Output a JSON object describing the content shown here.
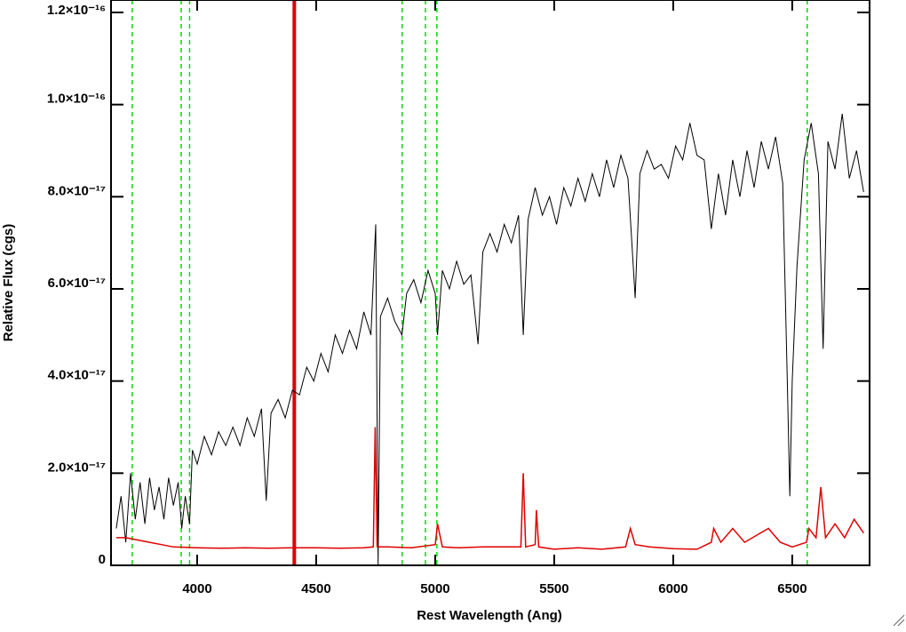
{
  "chart_data": {
    "type": "line",
    "xlabel": "Rest Wavelength (Ang)",
    "ylabel": "Relative Flux (cgs)",
    "xlim": [
      3638,
      6825
    ],
    "ylim": [
      0,
      1.227e-16
    ],
    "xticks": [
      4000,
      4500,
      5000,
      5500,
      6000,
      6500
    ],
    "yticks": [
      0,
      {
        "value": 2e-17,
        "label": "2.0×10⁻¹⁷"
      },
      {
        "value": 4e-17,
        "label": "4.0×10⁻¹⁷"
      },
      {
        "value": 6e-17,
        "label": "6.0×10⁻¹⁷"
      },
      {
        "value": 8e-17,
        "label": "8.0×10⁻¹⁷"
      },
      {
        "value": 1e-16,
        "label": "1.0×10⁻¹⁶"
      },
      {
        "value": 1.2e-16,
        "label": "1.2×10⁻¹⁶"
      }
    ],
    "markers": {
      "color": "#00dd00",
      "values": [
        3727,
        3933,
        3968,
        4861,
        4959,
        5007,
        6563
      ]
    },
    "highlight": {
      "color": "#e00000",
      "value": 4408
    },
    "series": [
      {
        "color": "#000000",
        "x": [
          3660,
          3680,
          3700,
          3720,
          3740,
          3760,
          3780,
          3800,
          3820,
          3840,
          3860,
          3880,
          3900,
          3920,
          3935,
          3950,
          3968,
          3980,
          4000,
          4030,
          4060,
          4090,
          4120,
          4150,
          4180,
          4210,
          4240,
          4270,
          4290,
          4310,
          4340,
          4370,
          4400,
          4430,
          4460,
          4490,
          4520,
          4550,
          4580,
          4610,
          4640,
          4670,
          4700,
          4730,
          4750,
          4760,
          4770,
          4800,
          4830,
          4860,
          4880,
          4910,
          4940,
          4970,
          5000,
          5010,
          5030,
          5060,
          5090,
          5120,
          5150,
          5180,
          5200,
          5230,
          5260,
          5290,
          5320,
          5350,
          5370,
          5390,
          5420,
          5450,
          5480,
          5510,
          5540,
          5570,
          5600,
          5630,
          5660,
          5690,
          5720,
          5750,
          5780,
          5810,
          5840,
          5860,
          5890,
          5920,
          5950,
          5980,
          6010,
          6040,
          6070,
          6100,
          6130,
          6160,
          6190,
          6220,
          6250,
          6280,
          6310,
          6340,
          6370,
          6400,
          6430,
          6460,
          6480,
          6490,
          6500,
          6520,
          6550,
          6580,
          6610,
          6630,
          6650,
          6680,
          6710,
          6740,
          6770,
          6800
        ],
        "values": [
          8e-18,
          1.5e-17,
          5e-18,
          2e-17,
          1e-17,
          1.8e-17,
          9e-18,
          1.9e-17,
          1.2e-17,
          1.7e-17,
          1e-17,
          1.9e-17,
          1.3e-17,
          1.8e-17,
          8e-18,
          1.5e-17,
          9e-18,
          2.5e-17,
          2.2e-17,
          2.8e-17,
          2.4e-17,
          2.9e-17,
          2.6e-17,
          3e-17,
          2.6e-17,
          3.2e-17,
          2.8e-17,
          3.4e-17,
          1.4e-17,
          3.3e-17,
          3.6e-17,
          3.2e-17,
          3.8e-17,
          3.7e-17,
          4.3e-17,
          4e-17,
          4.6e-17,
          4.2e-17,
          5e-17,
          4.6e-17,
          5.1e-17,
          4.7e-17,
          5.5e-17,
          5e-17,
          7.4e-17,
          0,
          5.4e-17,
          5.8e-17,
          5.3e-17,
          5e-17,
          5.9e-17,
          6.2e-17,
          5.7e-17,
          6.4e-17,
          5.9e-17,
          5e-17,
          6.4e-17,
          6e-17,
          6.6e-17,
          6.1e-17,
          6.3e-17,
          4.8e-17,
          6.8e-17,
          7.2e-17,
          6.8e-17,
          7.4e-17,
          7e-17,
          7.6e-17,
          5e-17,
          7.5e-17,
          8.2e-17,
          7.6e-17,
          8e-17,
          7.4e-17,
          8.2e-17,
          7.8e-17,
          8.4e-17,
          7.9e-17,
          8.5e-17,
          8e-17,
          8.8e-17,
          8.2e-17,
          8.9e-17,
          8.4e-17,
          5.8e-17,
          8.5e-17,
          9e-17,
          8.6e-17,
          8.7e-17,
          8.4e-17,
          9.1e-17,
          8.8e-17,
          9.6e-17,
          8.9e-17,
          8.8e-17,
          7.3e-17,
          8.5e-17,
          7.6e-17,
          8.8e-17,
          8e-17,
          9e-17,
          8.2e-17,
          9.2e-17,
          8.6e-17,
          9.3e-17,
          8.3e-17,
          3.8e-17,
          1.5e-17,
          4e-17,
          6.5e-17,
          8.8e-17,
          9.6e-17,
          8.5e-17,
          4.7e-17,
          9.2e-17,
          8.6e-17,
          9.8e-17,
          8.4e-17,
          9e-17,
          8.1e-17
        ]
      },
      {
        "color": "#e00000",
        "x": [
          3660,
          3700,
          3750,
          3800,
          3850,
          3900,
          4000,
          4100,
          4200,
          4300,
          4400,
          4500,
          4600,
          4700,
          4740,
          4748,
          4756,
          4800,
          4900,
          5000,
          5010,
          5030,
          5100,
          5200,
          5300,
          5360,
          5370,
          5380,
          5420,
          5425,
          5435,
          5500,
          5600,
          5700,
          5800,
          5820,
          5840,
          5900,
          6000,
          6100,
          6160,
          6170,
          6200,
          6250,
          6300,
          6400,
          6450,
          6500,
          6560,
          6570,
          6600,
          6620,
          6640,
          6680,
          6720,
          6760,
          6800
        ],
        "values": [
          6e-18,
          6e-18,
          5.5e-18,
          5e-18,
          4.5e-18,
          4e-18,
          3.8e-18,
          3.7e-18,
          3.8e-18,
          3.7e-18,
          3.8e-18,
          3.8e-18,
          3.7e-18,
          3.8e-18,
          4e-18,
          3e-17,
          4e-18,
          4e-18,
          3.8e-18,
          4.5e-18,
          9e-18,
          4e-18,
          3.8e-18,
          4e-18,
          4e-18,
          4e-18,
          2e-17,
          4e-18,
          4.5e-18,
          1.2e-17,
          4e-18,
          3.5e-18,
          3.8e-18,
          3.5e-18,
          4e-18,
          8e-18,
          4.5e-18,
          4e-18,
          3.6e-18,
          3.5e-18,
          5e-18,
          8e-18,
          5e-18,
          8e-18,
          5e-18,
          8e-18,
          5e-18,
          4e-18,
          5e-18,
          8e-18,
          6e-18,
          1.7e-17,
          6e-18,
          9e-18,
          6e-18,
          1e-17,
          7e-18
        ]
      }
    ]
  }
}
